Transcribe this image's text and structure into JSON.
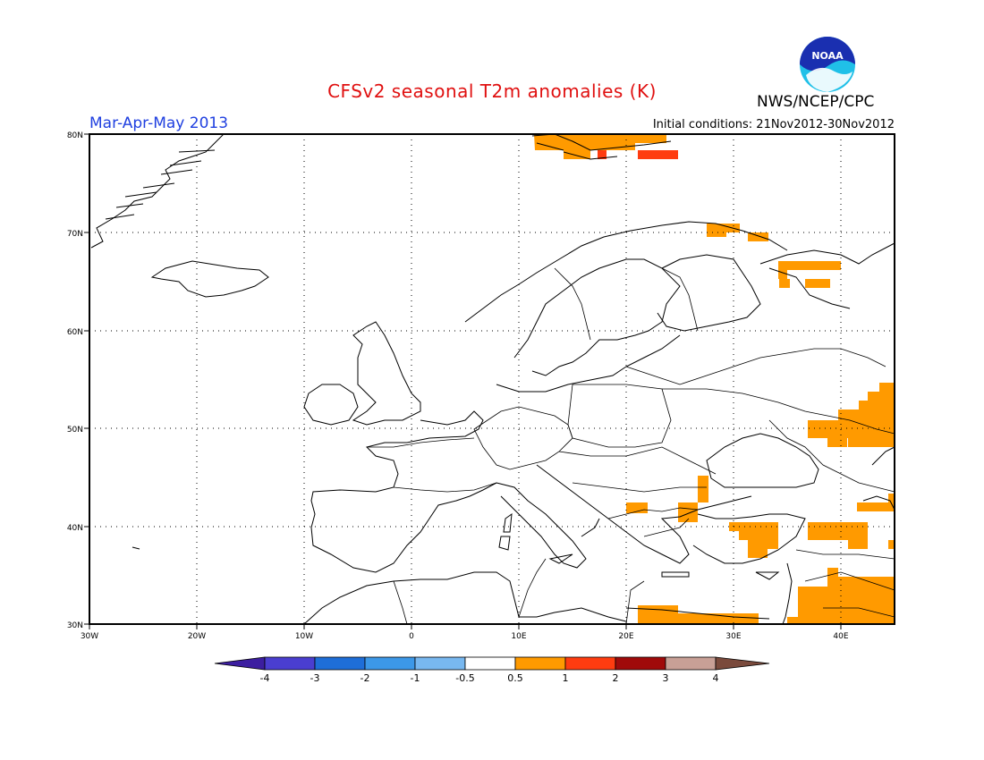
{
  "header": {
    "title": "CFSv2 seasonal T2m anomalies (K)",
    "period": "Mar-Apr-May 2013",
    "initial_conditions": "Initial conditions: 21Nov2012-30Nov2012",
    "agency": "NWS/NCEP/CPC",
    "logo_text": "NOAA"
  },
  "axes": {
    "x_ticks": [
      "30W",
      "20W",
      "10W",
      "0",
      "10E",
      "20E",
      "30E",
      "40E"
    ],
    "y_ticks": [
      "80N",
      "70N",
      "60N",
      "50N",
      "40N",
      "30N"
    ],
    "lon_range": [
      -30,
      45
    ],
    "lat_range": [
      30,
      80
    ],
    "grid": true
  },
  "colorbar": {
    "labels": [
      "-4",
      "-3",
      "-2",
      "-1",
      "-0.5",
      "0.5",
      "1",
      "2",
      "3",
      "4"
    ],
    "colors": [
      "#3c1ea0",
      "#4a3ed0",
      "#1e6ed8",
      "#3c98e8",
      "#78b8f0",
      "#ffffff",
      "#ff9a00",
      "#ff3c10",
      "#a00a0a",
      "#c8a096",
      "#7a4a3c"
    ],
    "scale": "K"
  },
  "anomaly_colors": {
    "above_0_5": "#ff9a00",
    "above_1": "#ff3c10"
  }
}
